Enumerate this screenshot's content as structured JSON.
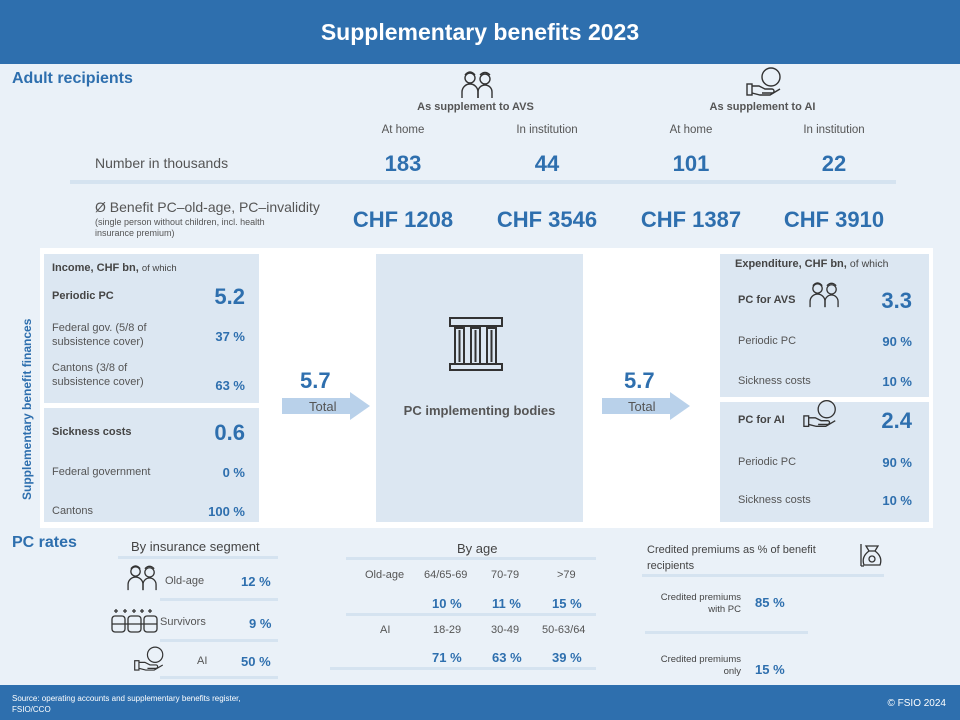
{
  "header": {
    "title": "Supplementary benefits 2023"
  },
  "adult": {
    "title": "Adult recipients",
    "group_avs": "As supplement to AVS",
    "group_ai": "As supplement to AI",
    "cols": [
      "At home",
      "In institution",
      "At home",
      "In institution"
    ],
    "number_label": "Number  in thousands",
    "numbers": [
      "183",
      "44",
      "101",
      "22"
    ],
    "benefit_label": "Ø Benefit PC–old-age, PC–invalidity",
    "benefit_note": "(single person without children, incl. health insurance premium)",
    "benefits": [
      "CHF 1208",
      "CHF 3546",
      "CHF 1387",
      "CHF 3910"
    ]
  },
  "finances": {
    "vertical_title": "Supplementary benefit finances",
    "income_title": "Income, CHF bn,",
    "income_suffix": "of which",
    "periodic_label": "Periodic PC",
    "periodic_value": "5.2",
    "fed_label": "Federal gov.  (5/8 of subsistence cover)",
    "fed_value": "37 %",
    "cant_label": "Cantons (3/8 of subsistence cover)",
    "cant_value": "63 %",
    "sick_label": "Sickness  costs",
    "sick_value": "0.6",
    "sick_fed_label": "Federal government",
    "sick_fed_value": "0 %",
    "sick_cant_label": "Cantons",
    "sick_cant_value": "100 %",
    "total_in": "5.7",
    "total_in_label": "Total",
    "center_label": "PC implementing bodies",
    "total_out": "5.7",
    "total_out_label": "Total",
    "exp_title": "Expenditure, CHF bn,",
    "exp_suffix": "of which",
    "avs_label": "PC for AVS",
    "avs_value": "3.3",
    "avs_periodic_label": "Periodic PC",
    "avs_periodic_value": "90 %",
    "avs_sick_label": "Sickness costs",
    "avs_sick_value": "10 %",
    "ai_label": "PC for AI",
    "ai_value": "2.4",
    "ai_periodic_label": "Periodic PC",
    "ai_periodic_value": "90 %",
    "ai_sick_label": "Sickness costs",
    "ai_sick_value": "10 %"
  },
  "rates": {
    "title": "PC rates",
    "segment_title": "By insurance segment",
    "segments": [
      {
        "label": "Old-age",
        "value": "12 %",
        "icon": "elderly-couple-icon"
      },
      {
        "label": "Survivors",
        "value": "9 %",
        "icon": "family-group-icon"
      },
      {
        "label": "AI",
        "value": "50 %",
        "icon": "hand-coin-icon"
      }
    ],
    "age_title": "By age",
    "oldage_label": "Old-age",
    "oldage_brackets": [
      "64/65-69",
      "70-79",
      ">79"
    ],
    "oldage_values": [
      "10 %",
      "11 %",
      "15 %"
    ],
    "ai_label": "AI",
    "ai_brackets": [
      "18-29",
      "30-49",
      "50-63/64"
    ],
    "ai_values": [
      "71 %",
      "63 %",
      "39 %"
    ],
    "credited_title": "Credited premiums as % of benefit recipients",
    "credited_pc_label": "Credited premiums with PC",
    "credited_pc_value": "85 %",
    "credited_only_label": "Credited premiums only",
    "credited_only_value": "15 %"
  },
  "footer": {
    "source": "Source:  operating  accounts and supplementary  benefits register,  FSIO/CCO",
    "copyright": "© FSIO 2024"
  },
  "colors": {
    "brand": "#2e6fae",
    "panel": "#dce7f2",
    "background": "#eaf1f8"
  }
}
